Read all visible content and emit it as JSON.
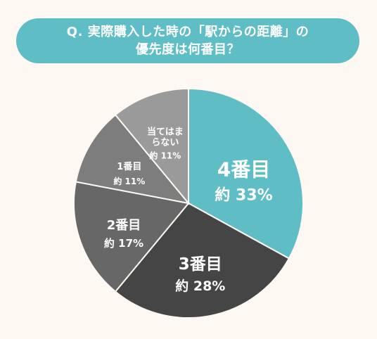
{
  "question": {
    "line1": "Q. 実際購入した時の「駅からの距離」の",
    "line2": "優先度は何番目？"
  },
  "colors": {
    "background": "#fdf8f1",
    "banner": "#5ebdc5"
  },
  "chart_data": {
    "type": "pie",
    "start": "12 o'clock, clockwise",
    "slices": [
      {
        "label": "4番目",
        "value_label": "約 33%",
        "value": 33,
        "color": "#5ebdc5"
      },
      {
        "label": "3番目",
        "value_label": "約 28%",
        "value": 28,
        "color": "#454545"
      },
      {
        "label": "2番目",
        "value_label": "約 17%",
        "value": 17,
        "color": "#676767"
      },
      {
        "label": "1番目",
        "value_label": "約 11%",
        "value": 11,
        "color": "#7d7d7d"
      },
      {
        "label": "当てはまらない",
        "value_label": "約 11%",
        "value": 11,
        "color": "#9a9a9a"
      }
    ]
  }
}
